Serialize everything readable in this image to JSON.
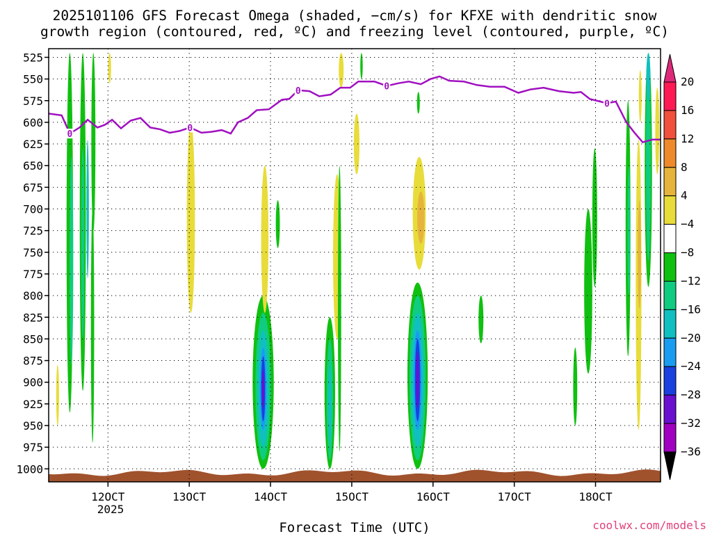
{
  "chart_data": {
    "type": "heatmap",
    "title_line1": "2025101106 GFS Forecast Omega (shaded, −cm/s) for KFXE with dendritic snow",
    "title_line2": "growth region (contoured, red, ºC) and freezing level (contoured, purple, ºC)",
    "xlabel": "Forecast Time (UTC)",
    "x_ticks": [
      {
        "hour": 120,
        "label": "12OCT"
      },
      {
        "hour": 130,
        "label": "13OCT"
      },
      {
        "hour": 140,
        "label": "14OCT"
      },
      {
        "hour": 150,
        "label": "15OCT"
      },
      {
        "hour": 160,
        "label": "16OCT"
      },
      {
        "hour": 170,
        "label": "17OCT"
      },
      {
        "hour": 180,
        "label": "18OCT"
      }
    ],
    "x_year_label": "2025",
    "x_range": [
      112.7,
      188
    ],
    "y_range": [
      515,
      1015
    ],
    "y_ticks": [
      "525",
      "550",
      "575",
      "600",
      "625",
      "650",
      "675",
      "700",
      "725",
      "750",
      "775",
      "800",
      "825",
      "850",
      "875",
      "900",
      "925",
      "950",
      "975",
      "1000"
    ],
    "colorbar": {
      "labels": [
        "20",
        "16",
        "12",
        "8",
        "4",
        "−4",
        "−8",
        "−12",
        "−16",
        "−20",
        "−24",
        "−28",
        "−32",
        "−36"
      ],
      "colors": [
        "#ff1a54",
        "#f0503c",
        "#ee8a2c",
        "#e6b43c",
        "#e8dc3a",
        "#ffffff",
        "#10c010",
        "#10cc80",
        "#10c0c0",
        "#1a9cf0",
        "#1a40e0",
        "#6a10d0",
        "#a000c0",
        "#aaaaaa"
      ],
      "top_arrow_color": "#e0287a",
      "bottom_arrow_color": "#000000"
    },
    "freezing_level": {
      "color": "#a010c0",
      "contour_label": "0",
      "label_hours": [
        115.3,
        130.1,
        143.4,
        154.3,
        181.4
      ],
      "points": [
        [
          112.7,
          590
        ],
        [
          114.3,
          592
        ],
        [
          115.3,
          613
        ],
        [
          116.5,
          606
        ],
        [
          117.5,
          597
        ],
        [
          118.7,
          606
        ],
        [
          119.6,
          603
        ],
        [
          120.5,
          597
        ],
        [
          121.6,
          607
        ],
        [
          122.8,
          598
        ],
        [
          124.0,
          595
        ],
        [
          125.2,
          606
        ],
        [
          126.4,
          608
        ],
        [
          127.6,
          612
        ],
        [
          128.8,
          610
        ],
        [
          130.1,
          606
        ],
        [
          131.5,
          612
        ],
        [
          132.7,
          611
        ],
        [
          134.0,
          609
        ],
        [
          135.1,
          613
        ],
        [
          136.0,
          600
        ],
        [
          137.2,
          595
        ],
        [
          138.3,
          586
        ],
        [
          139.8,
          585
        ],
        [
          141.4,
          574
        ],
        [
          142.3,
          573
        ],
        [
          143.4,
          563
        ],
        [
          144.8,
          564
        ],
        [
          146.0,
          570
        ],
        [
          147.4,
          568
        ],
        [
          148.6,
          560
        ],
        [
          149.8,
          560
        ],
        [
          150.8,
          553
        ],
        [
          152.8,
          553
        ],
        [
          154.3,
          558
        ],
        [
          155.7,
          555
        ],
        [
          157.0,
          553
        ],
        [
          158.5,
          556
        ],
        [
          159.7,
          550
        ],
        [
          160.8,
          547
        ],
        [
          162.0,
          552
        ],
        [
          163.8,
          553
        ],
        [
          165.4,
          557
        ],
        [
          167.0,
          559
        ],
        [
          168.8,
          559
        ],
        [
          170.5,
          566
        ],
        [
          172.0,
          562
        ],
        [
          173.6,
          560
        ],
        [
          175.5,
          564
        ],
        [
          177.3,
          566
        ],
        [
          178.2,
          565
        ],
        [
          179.3,
          573
        ],
        [
          181.4,
          578
        ],
        [
          182.5,
          576
        ],
        [
          183.8,
          600
        ],
        [
          184.8,
          612
        ],
        [
          185.8,
          623
        ],
        [
          187.0,
          620
        ],
        [
          188,
          620
        ]
      ]
    },
    "omega_cells": [
      {
        "hour": 115.3,
        "top": 520,
        "bottom": 935,
        "width": 0.8,
        "value": -8
      },
      {
        "hour": 115.5,
        "top": 640,
        "bottom": 880,
        "width": 0.45,
        "value": -12
      },
      {
        "hour": 116.9,
        "top": 520,
        "bottom": 910,
        "width": 0.75,
        "value": -8
      },
      {
        "hour": 116.9,
        "top": 630,
        "bottom": 850,
        "width": 0.4,
        "value": -12
      },
      {
        "hour": 117.5,
        "top": 620,
        "bottom": 780,
        "width": 0.3,
        "value": -16
      },
      {
        "hour": 118.2,
        "top": 520,
        "bottom": 725,
        "width": 0.5,
        "value": -8
      },
      {
        "hour": 113.8,
        "top": 880,
        "bottom": 950,
        "width": 0.35,
        "value": 4
      },
      {
        "hour": 118.1,
        "top": 700,
        "bottom": 970,
        "width": 0.4,
        "value": -8
      },
      {
        "hour": 130.2,
        "top": 600,
        "bottom": 820,
        "width": 1.0,
        "value": 4
      },
      {
        "hour": 120.2,
        "top": 520,
        "bottom": 555,
        "width": 0.35,
        "value": 4
      },
      {
        "hour": 139.1,
        "top": 800,
        "bottom": 1000,
        "width": 2.6,
        "value": -8
      },
      {
        "hour": 139.1,
        "top": 820,
        "bottom": 990,
        "width": 1.9,
        "value": -12
      },
      {
        "hour": 139.1,
        "top": 840,
        "bottom": 975,
        "width": 1.3,
        "value": -16
      },
      {
        "hour": 139.1,
        "top": 860,
        "bottom": 955,
        "width": 0.8,
        "value": -20
      },
      {
        "hour": 139.1,
        "top": 870,
        "bottom": 945,
        "width": 0.5,
        "value": -24
      },
      {
        "hour": 139.1,
        "top": 885,
        "bottom": 930,
        "width": 0.25,
        "value": -28
      },
      {
        "hour": 139.3,
        "top": 650,
        "bottom": 820,
        "width": 0.9,
        "value": 4
      },
      {
        "hour": 140.9,
        "top": 690,
        "bottom": 745,
        "width": 0.5,
        "value": -8
      },
      {
        "hour": 147.3,
        "top": 825,
        "bottom": 1000,
        "width": 1.3,
        "value": -8
      },
      {
        "hour": 147.3,
        "top": 850,
        "bottom": 990,
        "width": 0.8,
        "value": -12
      },
      {
        "hour": 147.3,
        "top": 880,
        "bottom": 970,
        "width": 0.4,
        "value": -16
      },
      {
        "hour": 148.2,
        "top": 660,
        "bottom": 850,
        "width": 1.0,
        "value": 4
      },
      {
        "hour": 148.5,
        "top": 650,
        "bottom": 980,
        "width": 0.4,
        "value": -8
      },
      {
        "hour": 148.7,
        "top": 520,
        "bottom": 560,
        "width": 0.6,
        "value": 4
      },
      {
        "hour": 150.6,
        "top": 590,
        "bottom": 660,
        "width": 0.7,
        "value": 4
      },
      {
        "hour": 151.2,
        "top": 520,
        "bottom": 550,
        "width": 0.3,
        "value": -8
      },
      {
        "hour": 158.1,
        "top": 785,
        "bottom": 1000,
        "width": 2.5,
        "value": -8
      },
      {
        "hour": 158.1,
        "top": 800,
        "bottom": 990,
        "width": 2.0,
        "value": -12
      },
      {
        "hour": 158.1,
        "top": 820,
        "bottom": 975,
        "width": 1.5,
        "value": -16
      },
      {
        "hour": 158.1,
        "top": 840,
        "bottom": 955,
        "width": 1.0,
        "value": -20
      },
      {
        "hour": 158.1,
        "top": 850,
        "bottom": 945,
        "width": 0.65,
        "value": -24
      },
      {
        "hour": 158.1,
        "top": 865,
        "bottom": 930,
        "width": 0.35,
        "value": -28
      },
      {
        "hour": 158.3,
        "top": 640,
        "bottom": 770,
        "width": 1.6,
        "value": 4
      },
      {
        "hour": 158.5,
        "top": 680,
        "bottom": 740,
        "width": 0.9,
        "value": 8
      },
      {
        "hour": 158.2,
        "top": 565,
        "bottom": 590,
        "width": 0.35,
        "value": -8
      },
      {
        "hour": 165.9,
        "top": 800,
        "bottom": 855,
        "width": 0.6,
        "value": -8
      },
      {
        "hour": 177.5,
        "top": 860,
        "bottom": 950,
        "width": 0.5,
        "value": -8
      },
      {
        "hour": 179.1,
        "top": 700,
        "bottom": 890,
        "width": 1.0,
        "value": -8
      },
      {
        "hour": 179.9,
        "top": 630,
        "bottom": 790,
        "width": 0.6,
        "value": -8
      },
      {
        "hour": 184.0,
        "top": 575,
        "bottom": 870,
        "width": 0.6,
        "value": -8
      },
      {
        "hour": 184.1,
        "top": 650,
        "bottom": 800,
        "width": 0.35,
        "value": -12
      },
      {
        "hour": 185.3,
        "top": 620,
        "bottom": 955,
        "width": 0.7,
        "value": 4
      },
      {
        "hour": 185.4,
        "top": 690,
        "bottom": 815,
        "width": 0.4,
        "value": 8
      },
      {
        "hour": 186.5,
        "top": 520,
        "bottom": 790,
        "width": 0.9,
        "value": -8
      },
      {
        "hour": 186.5,
        "top": 520,
        "bottom": 760,
        "width": 0.6,
        "value": -12
      },
      {
        "hour": 186.5,
        "top": 520,
        "bottom": 575,
        "width": 0.5,
        "value": -16
      },
      {
        "hour": 187.6,
        "top": 560,
        "bottom": 660,
        "width": 0.5,
        "value": 4
      },
      {
        "hour": 185.5,
        "top": 540,
        "bottom": 600,
        "width": 0.35,
        "value": 4
      }
    ]
  },
  "watermark": "coolwx.com/models"
}
